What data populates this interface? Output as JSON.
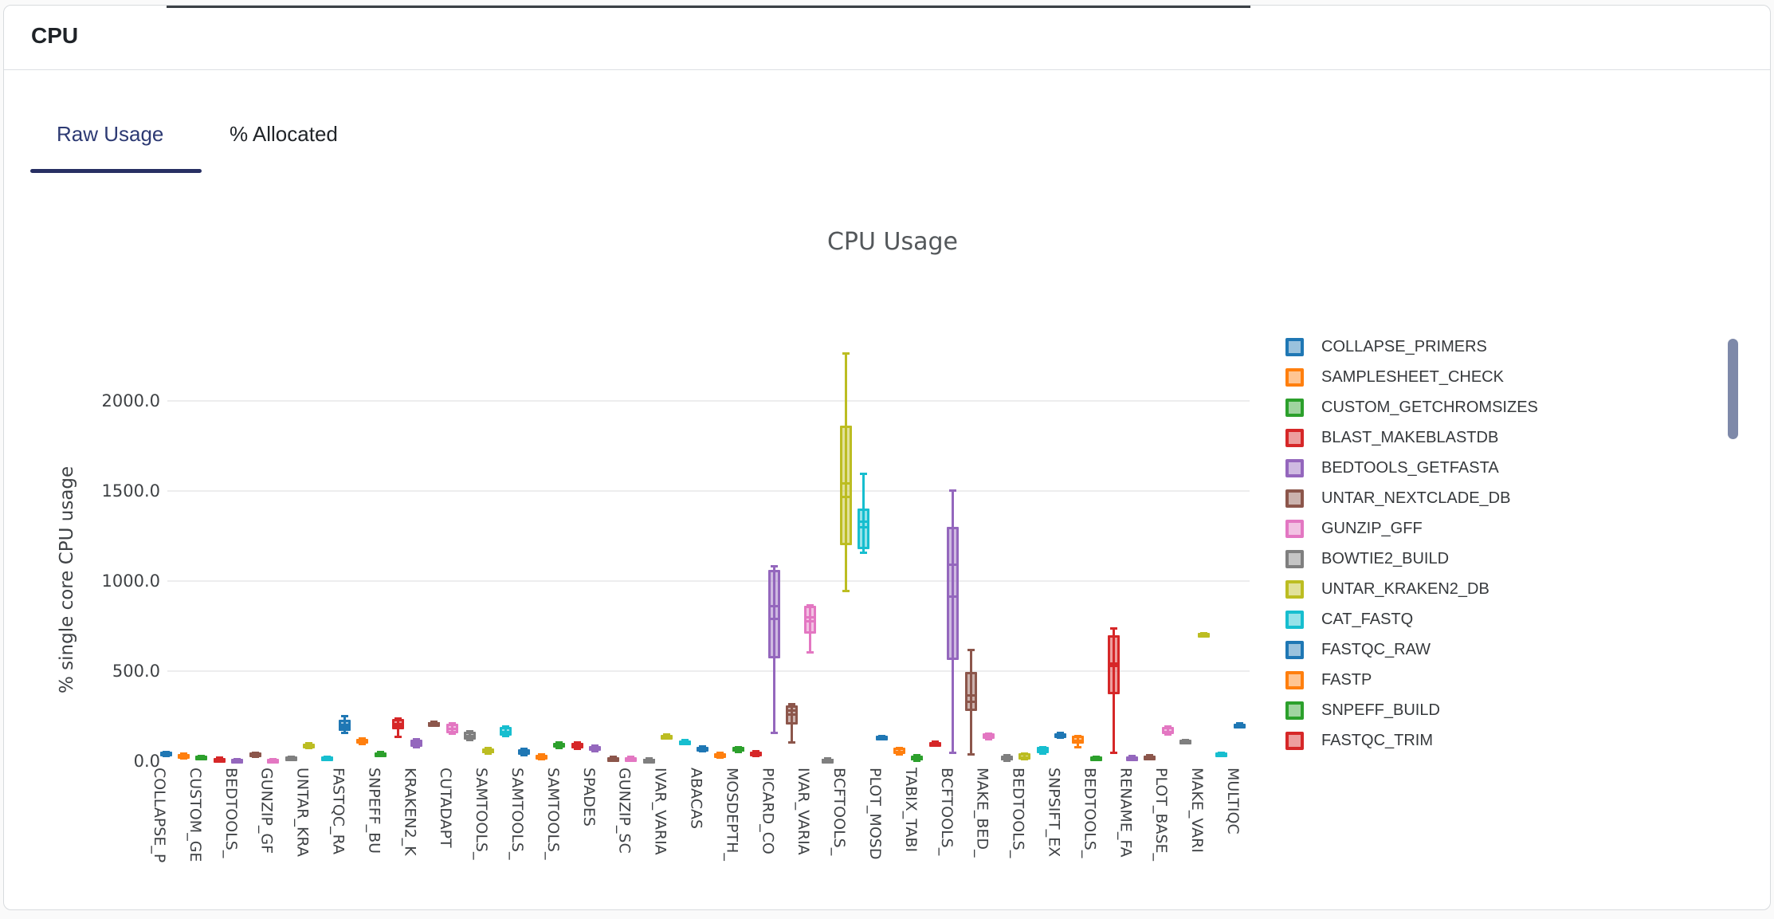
{
  "card": {
    "title": "CPU"
  },
  "tabs": {
    "raw_label": "Raw Usage",
    "allocated_label": "% Allocated",
    "active": "Raw Usage"
  },
  "chart_data": {
    "type": "boxplot",
    "title": "CPU Usage",
    "ylabel": "% single core CPU usage",
    "ylim": [
      0,
      2350
    ],
    "grid": true,
    "legend_position": "right",
    "yticks": [
      {
        "v": 0,
        "label": "0.0"
      },
      {
        "v": 500,
        "label": "500.0"
      },
      {
        "v": 1000,
        "label": "1000.0"
      },
      {
        "v": 1500,
        "label": "1500.0"
      },
      {
        "v": 2000,
        "label": "2000.0"
      }
    ],
    "palette": [
      "#1f77b4",
      "#ff7f0e",
      "#2ca02c",
      "#d62728",
      "#9467bd",
      "#8c564b",
      "#e377c2",
      "#7f7f7f",
      "#bcbd22",
      "#17becf"
    ],
    "tick_labels": [
      "COLLAPSE_P",
      "CUSTOM_GE",
      "BEDTOOLS_",
      "GUNZIP_GF",
      "UNTAR_KRA",
      "FASTQC_RA",
      "SNPEFF_BU",
      "KRAKEN2_K",
      "CUTADAPT",
      "SAMTOOLS_",
      "SAMTOOLS_",
      "SAMTOOLS_",
      "SPADES",
      "GUNZIP_SC",
      "IVAR_VARIA",
      "ABACAS",
      "MOSDEPTH_",
      "PICARD_CO",
      "IVAR_VARIA",
      "BCFTOOLS_",
      "PLOT_MOSD",
      "TABIX_TABI",
      "BCFTOOLS_",
      "MAKE_BED_",
      "BEDTOOLS_",
      "SNPSIFT_EX",
      "BEDTOOLS_",
      "RENAME_FA",
      "PLOT_BASE_",
      "MAKE_VARI",
      "MULTIQC"
    ],
    "boxes": [
      [
        25,
        30,
        40,
        52,
        55
      ],
      [
        14,
        18,
        28,
        40,
        42
      ],
      [
        10,
        13,
        20,
        30,
        32
      ],
      [
        0,
        2,
        8,
        18,
        20
      ],
      [
        0,
        1,
        6,
        14,
        15
      ],
      [
        24,
        27,
        36,
        48,
        50
      ],
      [
        0,
        1,
        6,
        14,
        15
      ],
      [
        3,
        5,
        14,
        26,
        28
      ],
      [
        70,
        76,
        85,
        97,
        100
      ],
      [
        3,
        5,
        14,
        25,
        27
      ],
      [
        155,
        168,
        203,
        230,
        252,
        190
      ],
      [
        95,
        102,
        112,
        124,
        128
      ],
      [
        28,
        31,
        40,
        49,
        51
      ],
      [
        133,
        177,
        208,
        234,
        240,
        200
      ],
      [
        75,
        80,
        100,
        120,
        123
      ],
      [
        200,
        204,
        210,
        217,
        220
      ],
      [
        150,
        155,
        180,
        208,
        212
      ],
      [
        115,
        119,
        140,
        164,
        168
      ],
      [
        40,
        44,
        55,
        71,
        74
      ],
      [
        138,
        142,
        165,
        190,
        194
      ],
      [
        32,
        35,
        50,
        66,
        69
      ],
      [
        10,
        13,
        24,
        35,
        38
      ],
      [
        72,
        75,
        88,
        102,
        105
      ],
      [
        68,
        71,
        85,
        102,
        105
      ],
      [
        54,
        57,
        70,
        84,
        87
      ],
      [
        6,
        9,
        15,
        22,
        25
      ],
      [
        6,
        9,
        15,
        22,
        25
      ],
      [
        0,
        2,
        8,
        15,
        17
      ],
      [
        125,
        128,
        138,
        148,
        152
      ],
      [
        93,
        96,
        105,
        117,
        120
      ],
      [
        55,
        58,
        68,
        81,
        84
      ],
      [
        18,
        22,
        30,
        45,
        49
      ],
      [
        49,
        53,
        62,
        78,
        80
      ],
      [
        27,
        31,
        42,
        55,
        57
      ],
      [
        155,
        570,
        790,
        1061,
        1085,
        860
      ],
      [
        100,
        204,
        260,
        310,
        320,
        285
      ],
      [
        601,
        707,
        779,
        861,
        868,
        800
      ],
      [
        0,
        2,
        8,
        15,
        17
      ],
      [
        941,
        1198,
        1467,
        1861,
        2263,
        1543
      ],
      [
        1154,
        1176,
        1300,
        1401,
        1596,
        1330
      ],
      [
        119,
        122,
        130,
        140,
        143
      ],
      [
        35,
        40,
        55,
        73,
        75
      ],
      [
        0,
        3,
        15,
        33,
        35
      ],
      [
        88,
        91,
        99,
        108,
        110
      ],
      [
        44,
        561,
        915,
        1300,
        1503,
        1092
      ],
      [
        35,
        278,
        332,
        495,
        620,
        367
      ],
      [
        119,
        123,
        137,
        153,
        155
      ],
      [
        2,
        5,
        15,
        33,
        35
      ],
      [
        7,
        10,
        20,
        42,
        44
      ],
      [
        40,
        45,
        60,
        78,
        80
      ],
      [
        130,
        133,
        143,
        155,
        160
      ],
      [
        75,
        97,
        115,
        141,
        143
      ],
      [
        7,
        10,
        16,
        25,
        27
      ],
      [
        44,
        371,
        530,
        698,
        738,
        545
      ],
      [
        7,
        10,
        16,
        28,
        30
      ],
      [
        11,
        14,
        20,
        33,
        35
      ],
      [
        145,
        150,
        165,
        192,
        195
      ],
      [
        103,
        106,
        112,
        118,
        120
      ],
      [
        692,
        695,
        702,
        710,
        713
      ],
      [
        28,
        31,
        40,
        48,
        50
      ],
      [
        185,
        190,
        198,
        206,
        210
      ]
    ],
    "legend": [
      {
        "label": "COLLAPSE_PRIMERS",
        "color_index": 0
      },
      {
        "label": "SAMPLESHEET_CHECK",
        "color_index": 1
      },
      {
        "label": "CUSTOM_GETCHROMSIZES",
        "color_index": 2
      },
      {
        "label": "BLAST_MAKEBLASTDB",
        "color_index": 3
      },
      {
        "label": "BEDTOOLS_GETFASTA",
        "color_index": 4
      },
      {
        "label": "UNTAR_NEXTCLADE_DB",
        "color_index": 5
      },
      {
        "label": "GUNZIP_GFF",
        "color_index": 6
      },
      {
        "label": "BOWTIE2_BUILD",
        "color_index": 7
      },
      {
        "label": "UNTAR_KRAKEN2_DB",
        "color_index": 8
      },
      {
        "label": "CAT_FASTQ",
        "color_index": 9
      },
      {
        "label": "FASTQC_RAW",
        "color_index": 0
      },
      {
        "label": "FASTP",
        "color_index": 1
      },
      {
        "label": "SNPEFF_BUILD",
        "color_index": 2
      },
      {
        "label": "FASTQC_TRIM",
        "color_index": 3
      }
    ],
    "scrollbar_color": "#7e89a9",
    "accent_color": "#272f63"
  }
}
